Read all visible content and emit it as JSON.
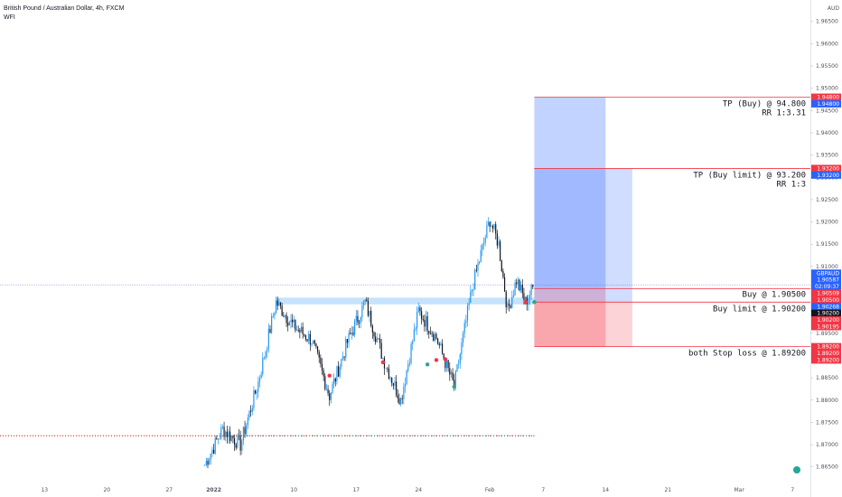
{
  "header": {
    "symbol_line": "British Pound / Australian Dollar, 4h, FXCM",
    "indicator": "WFI"
  },
  "currency": "AUD",
  "y_ticks": [
    "1.96500",
    "1.96000",
    "1.95500",
    "1.95000",
    "1.94500",
    "1.94000",
    "1.93500",
    "1.93000",
    "1.92500",
    "1.92000",
    "1.91500",
    "1.91000",
    "1.90500",
    "1.90000",
    "1.89500",
    "1.89000",
    "1.88500",
    "1.88000",
    "1.87500",
    "1.87000",
    "1.86500"
  ],
  "x_ticks": [
    "13",
    "20",
    "27",
    "2022",
    "10",
    "17",
    "24",
    "Feb",
    "7",
    "14",
    "21",
    "Mar",
    "7"
  ],
  "price_tags": [
    {
      "text": "1.94800",
      "color": "#f23645"
    },
    {
      "text": "1.94800",
      "color": "#2962ff"
    },
    {
      "text": "1.93200",
      "color": "#f23645"
    },
    {
      "text": "1.93200",
      "color": "#2962ff"
    },
    {
      "text": "GBPAUD",
      "color": "#2962ff"
    },
    {
      "text": "1.90587",
      "color": "#2962ff"
    },
    {
      "text": "02:09:37",
      "color": "#2962ff"
    },
    {
      "text": "1.90509",
      "color": "#f23645"
    },
    {
      "text": "1.90500",
      "color": "#f23645"
    },
    {
      "text": "1.90268",
      "color": "#2962ff"
    },
    {
      "text": "1.90200",
      "color": "#131722"
    },
    {
      "text": "1.90200",
      "color": "#f23645"
    },
    {
      "text": "1.90195",
      "color": "#f23645"
    },
    {
      "text": "1.89200",
      "color": "#f23645"
    },
    {
      "text": "1.89200",
      "color": "#f23645"
    },
    {
      "text": "1.89200",
      "color": "#f23645"
    }
  ],
  "annotations": {
    "tp_buy": "TP (Buy) @ 94.800",
    "tp_buy_rr": "RR 1:3.31",
    "tp_limit": "TP (Buy limit) @ 93.200",
    "tp_limit_rr": "RR 1:3",
    "buy": "Buy @ 1.90500",
    "buy_limit": "Buy limit @ 1.90200",
    "stop": "both Stop loss @ 1.89200"
  },
  "chart_data": {
    "type": "candlestick",
    "title": "British Pound / Australian Dollar, 4h, FXCM",
    "ylim": [
      1.8615,
      1.969
    ],
    "y_axis_unit": "AUD",
    "x_axis": "date",
    "x_range": [
      "2021-12-08",
      "2022-03-09"
    ],
    "last_price": 1.90587,
    "price_path": [
      {
        "date": "2021-12-31",
        "price": 1.8655
      },
      {
        "date": "2022-01-02",
        "price": 1.8735
      },
      {
        "date": "2022-01-04",
        "price": 1.87
      },
      {
        "date": "2022-01-06",
        "price": 1.884
      },
      {
        "date": "2022-01-08",
        "price": 1.902
      },
      {
        "date": "2022-01-10",
        "price": 1.8965
      },
      {
        "date": "2022-01-12",
        "price": 1.8935
      },
      {
        "date": "2022-01-14",
        "price": 1.881
      },
      {
        "date": "2022-01-16",
        "price": 1.893
      },
      {
        "date": "2022-01-18",
        "price": 1.902
      },
      {
        "date": "2022-01-20",
        "price": 1.8895
      },
      {
        "date": "2022-01-22",
        "price": 1.88
      },
      {
        "date": "2022-01-24",
        "price": 1.9
      },
      {
        "date": "2022-01-26",
        "price": 1.894
      },
      {
        "date": "2022-01-28",
        "price": 1.883
      },
      {
        "date": "2022-01-30",
        "price": 1.905
      },
      {
        "date": "2022-02-01",
        "price": 1.9205
      },
      {
        "date": "2022-02-02",
        "price": 1.915
      },
      {
        "date": "2022-02-03",
        "price": 1.9
      },
      {
        "date": "2022-02-04",
        "price": 1.907
      },
      {
        "date": "2022-02-05",
        "price": 1.902
      },
      {
        "date": "2022-02-06",
        "price": 1.9058
      }
    ],
    "zones": [
      {
        "name": "support zone",
        "y_low": 1.9015,
        "y_high": 1.903,
        "x_start": "2022-01-08",
        "x_end": "2022-02-06"
      }
    ],
    "positions": [
      {
        "name": "Buy",
        "entry": 1.905,
        "take_profit": 1.948,
        "stop_loss": 1.892,
        "x_start": "2022-02-06",
        "x_end": "2022-02-14",
        "rr": "1:3.31"
      },
      {
        "name": "Buy limit",
        "entry": 1.902,
        "take_profit": 1.932,
        "stop_loss": 1.892,
        "x_start": "2022-02-06",
        "x_end": "2022-02-17",
        "rr": "1:3"
      }
    ],
    "horizontal_lines": [
      {
        "name": "dotted level",
        "y": 1.872
      }
    ]
  }
}
